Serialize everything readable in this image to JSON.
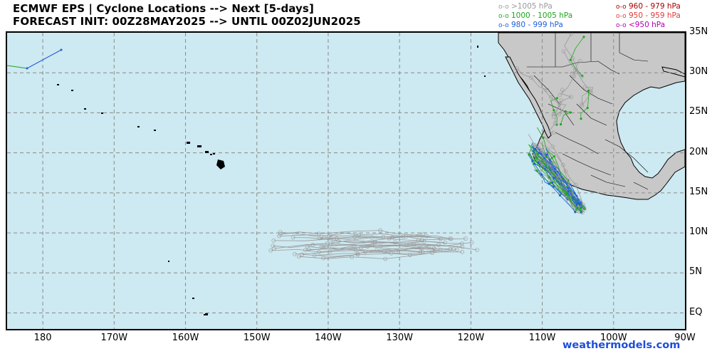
{
  "title_line1": "ECMWF EPS | Cyclone Locations --> Next [5-days]",
  "title_line2": "FORECAST INIT: 00Z28MAY2025 --> UNTIL 00Z02JUN2025",
  "legend": [
    {
      "marker": "o-o",
      "label": ">1005 hPa",
      "color": "#9a9a9a"
    },
    {
      "marker": "o-o",
      "label": "1000 - 1005 hPa",
      "color": "#1fa51f"
    },
    {
      "marker": "o-o",
      "label": "980 - 999 hPa",
      "color": "#1f5fd8"
    },
    {
      "marker": "o-o",
      "label": "960 - 979 hPa",
      "color": "#a80000"
    },
    {
      "marker": "o-o",
      "label": "950 - 959 hPa",
      "color": "#e03a3a"
    },
    {
      "marker": "o-o",
      "label": "<950 hPa",
      "color": "#b000b0"
    }
  ],
  "lat_labels": [
    "35N",
    "30N",
    "25N",
    "20N",
    "15N",
    "10N",
    "5N",
    "EQ"
  ],
  "lon_labels": [
    "180",
    "170W",
    "160W",
    "150W",
    "140W",
    "130W",
    "120W",
    "110W",
    "100W",
    "90W"
  ],
  "brand": "weathermodels.com",
  "colors": {
    "ocean": "#cde9f1",
    "land": "#c8c8c8",
    "grid": "#8a8a8a",
    "border": "#000000"
  },
  "map_extent": {
    "lon_min": -185,
    "lon_max": -90,
    "lat_min": -2,
    "lat_max": 35
  },
  "track_clusters": [
    {
      "name": "mexico-coast",
      "center_lon": -105.5,
      "center_lat": 15.5
    },
    {
      "name": "central-pacific",
      "center_lon": -140,
      "center_lat": 8
    }
  ]
}
